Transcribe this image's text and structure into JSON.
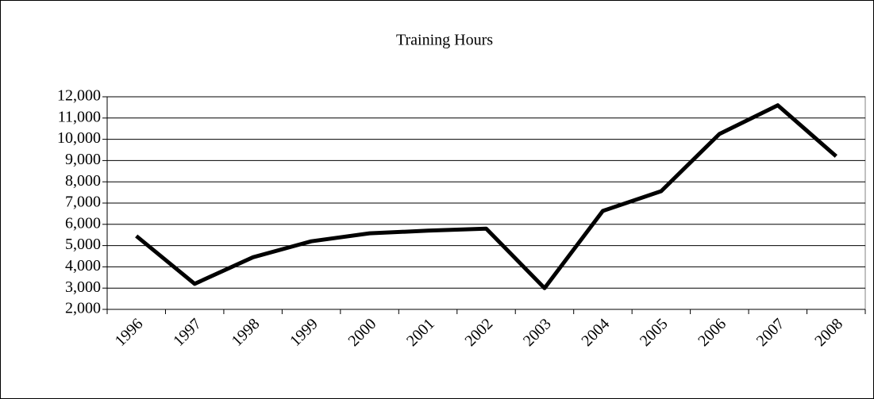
{
  "chart_data": {
    "type": "line",
    "title": "Training Hours",
    "categories": [
      "1996",
      "1997",
      "1998",
      "1999",
      "2000",
      "2001",
      "2002",
      "2003",
      "2004",
      "2005",
      "2006",
      "2007",
      "2008"
    ],
    "values": [
      5450,
      3200,
      4450,
      5200,
      5580,
      5700,
      5800,
      3000,
      6630,
      7560,
      10250,
      11600,
      9200
    ],
    "color": "#000000",
    "ylim": [
      2000,
      12000
    ],
    "yticks": [
      {
        "value": 2000,
        "label": "2,000"
      },
      {
        "value": 3000,
        "label": "3,000"
      },
      {
        "value": 4000,
        "label": "4,000"
      },
      {
        "value": 5000,
        "label": "5,000"
      },
      {
        "value": 6000,
        "label": "6,000"
      },
      {
        "value": 7000,
        "label": "7,000"
      },
      {
        "value": 8000,
        "label": "8,000"
      },
      {
        "value": 9000,
        "label": "9,000"
      },
      {
        "value": 10000,
        "label": "10,000"
      },
      {
        "value": 11000,
        "label": "11,000"
      },
      {
        "value": 12000,
        "label": "12,000"
      }
    ],
    "grid": true
  }
}
